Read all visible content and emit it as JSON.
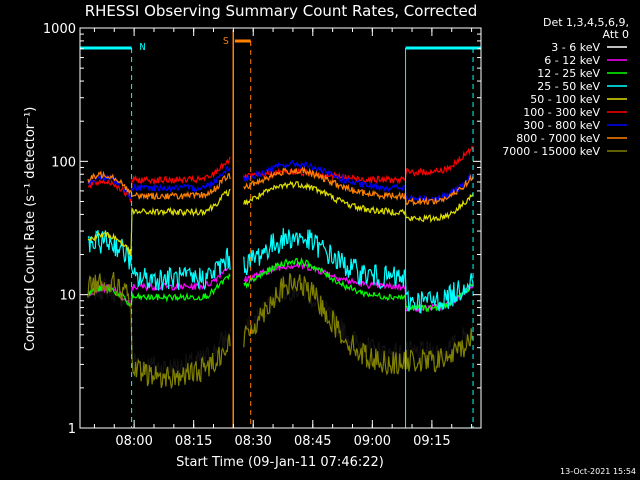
{
  "chart_data": {
    "type": "line",
    "title": "RHESSI Observing Summary Count Rates, Corrected",
    "xlabel": "Start Time (09-Jan-11 07:46:22)",
    "ylabel": "Corrected Count Rate (s⁻¹ detector⁻¹)",
    "yscale": "log",
    "ylim": [
      1,
      1000
    ],
    "xlim_minutes_after_start": [
      0,
      101
    ],
    "x_tick_labels": [
      "08:00",
      "08:15",
      "08:30",
      "08:45",
      "09:00",
      "09:15"
    ],
    "y_tick_labels": [
      "1",
      "10",
      "100",
      "1000"
    ],
    "timestamp": "13-Oct-2021 15:54",
    "legend_header": [
      "Det 1,3,4,5,6,9,",
      "Att 0"
    ],
    "flags": [
      {
        "label": "N",
        "color": "#00ffff"
      },
      {
        "label": "S",
        "color": "#ff8000"
      }
    ],
    "series": [
      {
        "name": "3 - 6 keV",
        "color": "#000000",
        "key_color": "#ffffff",
        "profile": "black"
      },
      {
        "name": "6 - 12 keV",
        "color": "#ff00ff",
        "profile": "magenta"
      },
      {
        "name": "12 - 25 keV",
        "color": "#00ff00",
        "profile": "green"
      },
      {
        "name": "25 - 50 keV",
        "color": "#00ffff",
        "profile": "cyan"
      },
      {
        "name": "50 - 100 keV",
        "color": "#e0e000",
        "profile": "yellow"
      },
      {
        "name": "100 - 300 keV",
        "color": "#ff0000",
        "profile": "red"
      },
      {
        "name": "300 - 800 keV",
        "color": "#0000ff",
        "profile": "blue"
      },
      {
        "name": "800 - 7000 keV",
        "color": "#ff8000",
        "profile": "orange"
      },
      {
        "name": "7000 - 15000 keV",
        "color": "#808000",
        "profile": "olive"
      }
    ]
  }
}
